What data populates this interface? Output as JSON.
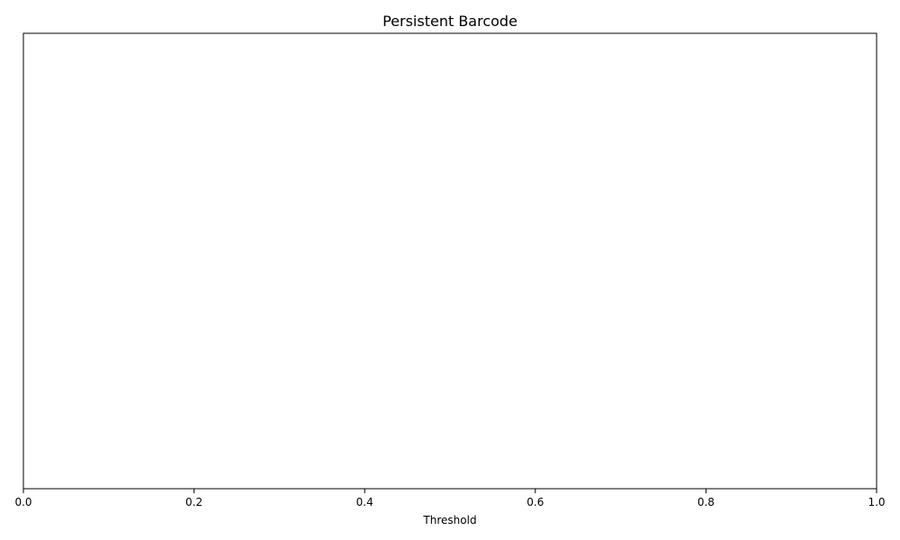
{
  "chart_data": {
    "type": "bar",
    "title": "Persistent Barcode",
    "xlabel": "Threshold",
    "ylabel": "",
    "xlim": [
      0.0,
      1.0
    ],
    "x_ticks": [
      "0.0",
      "0.2",
      "0.4",
      "0.6",
      "0.8",
      "1.0"
    ],
    "y_ticks": [],
    "bars": [],
    "grid": false,
    "legend": "none",
    "colors": {
      "frame": "#000000",
      "background": "#ffffff"
    }
  }
}
